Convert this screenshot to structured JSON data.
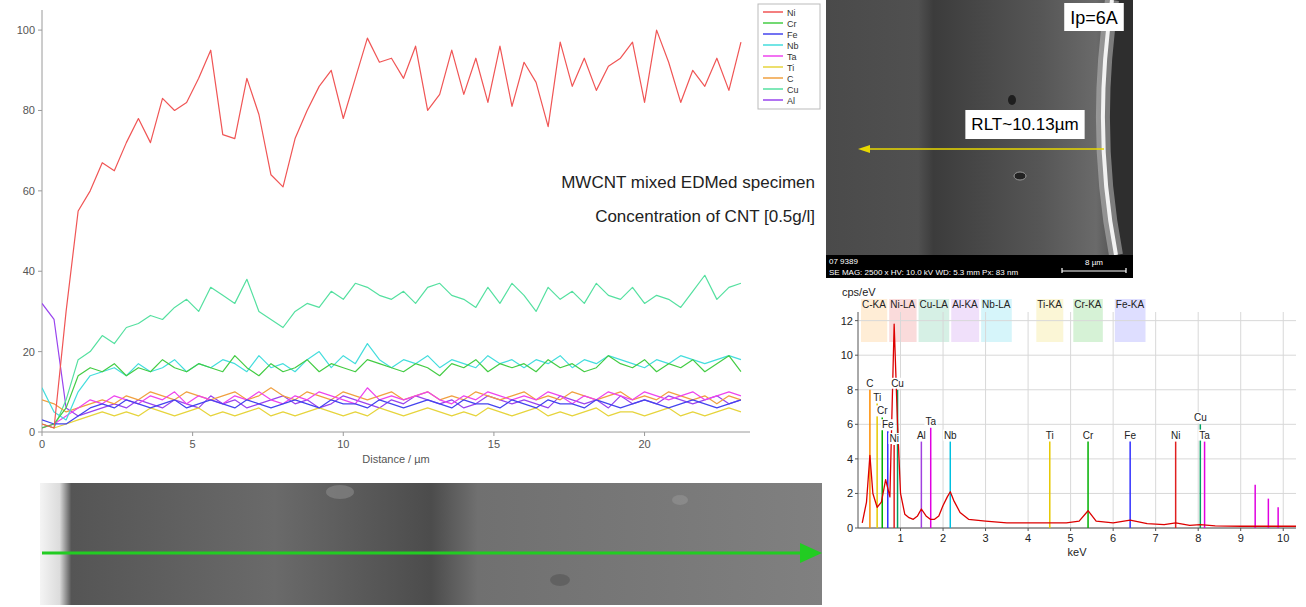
{
  "chart_data": [
    {
      "type": "line",
      "x_label": "Distance / µm",
      "annotations": [
        "MWCNT mixed EDMed specimen",
        "Concentration of CNT [0.5g/l]"
      ],
      "x": [
        0,
        0.4,
        0.8,
        1.2,
        1.6,
        2,
        2.4,
        2.8,
        3.2,
        3.6,
        4,
        4.4,
        4.8,
        5.2,
        5.6,
        6,
        6.4,
        6.8,
        7.2,
        7.6,
        8,
        8.4,
        8.8,
        9.2,
        9.6,
        10,
        10.4,
        10.8,
        11.2,
        11.6,
        12,
        12.4,
        12.8,
        13.2,
        13.6,
        14,
        14.4,
        14.8,
        15.2,
        15.6,
        16,
        16.4,
        16.8,
        17.2,
        17.6,
        18,
        18.4,
        18.8,
        19.2,
        19.6,
        20,
        20.4,
        20.8,
        21.2,
        21.6,
        22,
        22.4,
        22.8,
        23.2
      ],
      "xlim": [
        0,
        23.5
      ],
      "xticks": [
        0,
        5,
        10,
        15,
        20
      ],
      "ylim": [
        0,
        105
      ],
      "yticks": [
        0,
        20,
        40,
        60,
        80,
        100
      ],
      "legend": "right",
      "series": [
        {
          "name": "Ni",
          "color": "#f05555",
          "values": [
            2,
            1,
            30,
            55,
            60,
            67,
            65,
            72,
            78,
            72,
            83,
            80,
            82,
            88,
            95,
            74,
            73,
            88,
            79,
            64,
            61,
            73,
            80,
            86,
            90,
            78,
            88,
            98,
            92,
            93,
            88,
            96,
            80,
            84,
            95,
            84,
            93,
            82,
            96,
            81,
            92,
            87,
            76,
            97,
            86,
            93,
            85,
            91,
            93,
            97,
            82,
            100,
            92,
            82,
            90,
            86,
            93,
            85,
            97
          ]
        },
        {
          "name": "Cr",
          "color": "#44cc44",
          "values": [
            1,
            2,
            6,
            14,
            16,
            15,
            17,
            14,
            16,
            15,
            18,
            16,
            15,
            17,
            16,
            15,
            19,
            16,
            14,
            17,
            15,
            16,
            18,
            15,
            17,
            16,
            15,
            18,
            17,
            16,
            15,
            17,
            16,
            14,
            17,
            16,
            18,
            15,
            17,
            16,
            17,
            15,
            18,
            16,
            17,
            15,
            16,
            19,
            17,
            16,
            18,
            15,
            17,
            16,
            18,
            15,
            17,
            19,
            15
          ]
        },
        {
          "name": "Fe",
          "color": "#4444ee",
          "values": [
            3,
            2,
            2,
            4,
            6,
            7,
            6,
            8,
            7,
            6,
            7,
            8,
            6,
            7,
            8,
            7,
            6,
            8,
            7,
            6,
            7,
            8,
            7,
            6,
            8,
            7,
            7,
            6,
            8,
            7,
            6,
            7,
            8,
            7,
            6,
            8,
            7,
            7,
            6,
            8,
            7,
            6,
            8,
            7,
            7,
            6,
            8,
            7,
            6,
            7,
            8,
            7,
            6,
            7,
            8,
            7,
            6,
            7,
            8
          ]
        },
        {
          "name": "Nb",
          "color": "#44dddd",
          "values": [
            11,
            5,
            3,
            10,
            14,
            15,
            16,
            14,
            17,
            15,
            16,
            18,
            15,
            17,
            16,
            18,
            17,
            15,
            19,
            16,
            17,
            15,
            18,
            20,
            16,
            19,
            17,
            22,
            18,
            16,
            18,
            17,
            19,
            16,
            18,
            17,
            16,
            19,
            17,
            18,
            16,
            18,
            17,
            19,
            16,
            18,
            17,
            19,
            18,
            17,
            16,
            18,
            17,
            19,
            18,
            17,
            18,
            19,
            18
          ]
        },
        {
          "name": "Ta",
          "color": "#ee44ee",
          "values": [
            1,
            2,
            4,
            6,
            8,
            7,
            9,
            8,
            7,
            9,
            8,
            10,
            7,
            9,
            8,
            7,
            9,
            8,
            10,
            8,
            7,
            9,
            8,
            10,
            9,
            8,
            7,
            11,
            8,
            9,
            8,
            9,
            10,
            8,
            7,
            9,
            8,
            10,
            9,
            8,
            9,
            8,
            10,
            9,
            7,
            9,
            8,
            10,
            9,
            8,
            10,
            9,
            8,
            9,
            10,
            8,
            9,
            10,
            9
          ]
        },
        {
          "name": "Ti",
          "color": "#e6d43c",
          "values": [
            2,
            1,
            2,
            3,
            4,
            5,
            4,
            5,
            4,
            6,
            5,
            4,
            5,
            6,
            4,
            5,
            4,
            5,
            6,
            4,
            5,
            4,
            5,
            6,
            5,
            4,
            5,
            4,
            6,
            5,
            4,
            5,
            6,
            5,
            4,
            5,
            4,
            6,
            5,
            4,
            5,
            6,
            4,
            5,
            4,
            5,
            6,
            4,
            5,
            5,
            4,
            5,
            6,
            4,
            5,
            4,
            5,
            6,
            5
          ]
        },
        {
          "name": "C",
          "color": "#f0a040",
          "values": [
            8,
            7,
            5,
            6,
            7,
            8,
            7,
            9,
            8,
            10,
            9,
            8,
            10,
            9,
            8,
            9,
            10,
            8,
            9,
            11,
            9,
            8,
            10,
            9,
            8,
            10,
            9,
            8,
            9,
            10,
            8,
            9,
            10,
            8,
            9,
            8,
            10,
            9,
            8,
            9,
            10,
            8,
            9,
            8,
            10,
            9,
            8,
            9,
            10,
            8,
            9,
            8,
            10,
            9,
            8,
            9,
            7,
            9,
            8
          ]
        },
        {
          "name": "Cu",
          "color": "#55e0a0",
          "values": [
            2,
            1,
            8,
            18,
            20,
            24,
            22,
            26,
            27,
            29,
            28,
            31,
            33,
            30,
            36,
            34,
            32,
            38,
            30,
            28,
            26,
            30,
            32,
            31,
            35,
            33,
            37,
            36,
            34,
            33,
            35,
            32,
            36,
            37,
            34,
            33,
            31,
            36,
            32,
            37,
            34,
            30,
            36,
            33,
            35,
            32,
            37,
            34,
            33,
            36,
            32,
            34,
            33,
            31,
            35,
            39,
            33,
            36,
            37
          ]
        },
        {
          "name": "Al",
          "color": "#9944ee",
          "values": [
            32,
            28,
            6,
            4,
            5,
            6,
            7,
            6,
            8,
            7,
            6,
            8,
            7,
            6,
            9,
            7,
            8,
            6,
            7,
            8,
            9,
            7,
            8,
            6,
            7,
            9,
            8,
            7,
            6,
            8,
            7,
            9,
            8,
            7,
            8,
            6,
            7,
            9,
            8,
            7,
            8,
            7,
            6,
            9,
            8,
            7,
            8,
            6,
            9,
            7,
            8,
            7,
            9,
            8,
            7,
            8,
            9,
            7,
            8
          ]
        }
      ]
    },
    {
      "type": "line",
      "y_label": "cps/eV",
      "x_label": "keV",
      "grid": true,
      "color": "#dd0000",
      "x": [
        0.1,
        0.2,
        0.28,
        0.35,
        0.45,
        0.55,
        0.65,
        0.75,
        0.85,
        0.93,
        1.0,
        1.1,
        1.2,
        1.3,
        1.4,
        1.49,
        1.6,
        1.7,
        1.8,
        1.9,
        2.0,
        2.1,
        2.17,
        2.25,
        2.4,
        2.6,
        3.0,
        3.5,
        4.0,
        4.5,
        4.9,
        5.2,
        5.41,
        5.6,
        6.0,
        6.4,
        6.8,
        7.2,
        7.47,
        7.8,
        8.05,
        8.4,
        9.0,
        9.5,
        10.0,
        10.3
      ],
      "values": [
        0.3,
        1.5,
        4.2,
        2,
        1.2,
        1.5,
        2.8,
        1.8,
        11.8,
        6,
        2,
        0.8,
        0.6,
        0.5,
        0.7,
        1.1,
        0.7,
        0.5,
        0.5,
        0.7,
        1.3,
        1.8,
        2.1,
        1.6,
        0.9,
        0.5,
        0.4,
        0.3,
        0.3,
        0.3,
        0.3,
        0.4,
        1.0,
        0.4,
        0.3,
        0.45,
        0.25,
        0.2,
        0.3,
        0.15,
        0.2,
        0.12,
        0.1,
        0.1,
        0.1,
        0.1
      ],
      "xlim": [
        0,
        10.3
      ],
      "xticks": [
        1,
        2,
        3,
        4,
        5,
        6,
        7,
        8,
        9,
        10
      ],
      "ylim": [
        0,
        12.5
      ],
      "yticks": [
        0,
        2,
        4,
        6,
        8,
        10,
        12
      ],
      "line_headers": [
        {
          "label": "C-KA",
          "energy": 0.28,
          "color": "#ff8c00"
        },
        {
          "label": "Ni-LA",
          "energy": 0.85,
          "color": "#e02020"
        },
        {
          "label": "Cu-LA",
          "energy": 0.93,
          "color": "#00a060"
        },
        {
          "label": "Al-KA",
          "energy": 1.49,
          "color": "#a040e0"
        },
        {
          "label": "Nb-LA",
          "energy": 2.17,
          "color": "#00c0e0"
        },
        {
          "label": "Ti-KA",
          "energy": 4.51,
          "color": "#e6c800"
        },
        {
          "label": "Cr-KA",
          "energy": 5.41,
          "color": "#00b000"
        },
        {
          "label": "Fe-KA",
          "energy": 6.4,
          "color": "#3030ff"
        }
      ],
      "peak_labels": [
        {
          "label": "C",
          "energy": 0.28,
          "height": 8,
          "color": "#ff8c00"
        },
        {
          "label": "Ti",
          "energy": 0.45,
          "height": 7.2,
          "color": "#e6c800"
        },
        {
          "label": "Cr",
          "energy": 0.57,
          "height": 6.4,
          "color": "#00b000"
        },
        {
          "label": "Fe",
          "energy": 0.7,
          "height": 5.6,
          "color": "#3030ff"
        },
        {
          "label": "Ni",
          "energy": 0.85,
          "height": 4.8,
          "color": "#e02020"
        },
        {
          "label": "Cu",
          "energy": 0.93,
          "height": 8,
          "color": "#00a060"
        },
        {
          "label": "Al",
          "energy": 1.49,
          "height": 5,
          "color": "#a040e0"
        },
        {
          "label": "Ta",
          "energy": 1.71,
          "height": 5.8,
          "color": "#e000e0"
        },
        {
          "label": "Nb",
          "energy": 2.17,
          "height": 5,
          "color": "#00c0e0"
        },
        {
          "label": "Ti",
          "energy": 4.51,
          "height": 5,
          "color": "#e6c800"
        },
        {
          "label": "Cr",
          "energy": 5.41,
          "height": 5,
          "color": "#00b000"
        },
        {
          "label": "Fe",
          "energy": 6.4,
          "height": 5,
          "color": "#3030ff"
        },
        {
          "label": "Ni",
          "energy": 7.47,
          "height": 5,
          "color": "#e02020"
        },
        {
          "label": "Cu",
          "energy": 8.05,
          "height": 6,
          "color": "#00a060"
        },
        {
          "label": "Ta",
          "energy": 8.15,
          "height": 5,
          "color": "#e000e0"
        }
      ],
      "unlabeled_lines": [
        {
          "energy": 9.34,
          "height": 2.5,
          "color": "#e000e0"
        },
        {
          "energy": 9.65,
          "height": 1.7,
          "color": "#e000e0"
        },
        {
          "energy": 9.88,
          "height": 1.2,
          "color": "#e000e0"
        }
      ]
    }
  ],
  "sem_image": {
    "current": "Ip=6A",
    "recast_layer": "RLT~10.13µm",
    "image_id": "07 9389",
    "info": "SE MAG: 2500 x HV: 10.0 kV WD: 5.3 mm Px: 83 nm",
    "scale_bar": "8 µm"
  }
}
